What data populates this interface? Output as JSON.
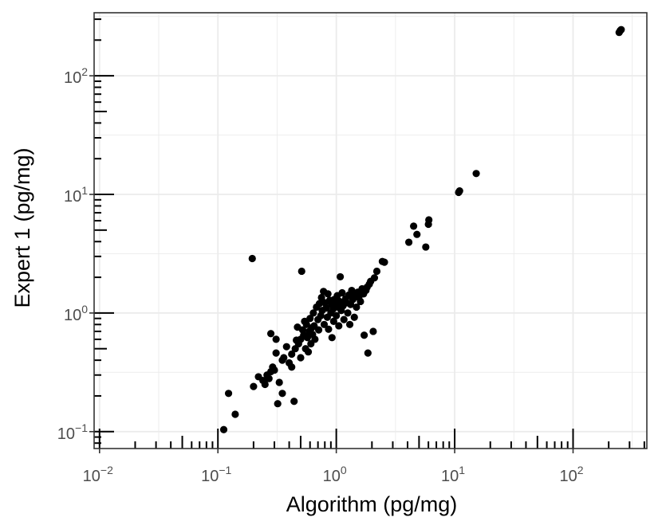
{
  "chart_data": {
    "type": "scatter",
    "xlabel": "Algorithm (pg/mg)",
    "ylabel": "Expert 1 (pg/mg)",
    "xscale": "log10",
    "yscale": "log10",
    "xlim": [
      0.009,
      420
    ],
    "ylim": [
      0.072,
      340
    ],
    "x_ticks": [
      {
        "base": "10",
        "exp": "−2",
        "value": 0.01
      },
      {
        "base": "10",
        "exp": "−1",
        "value": 0.1
      },
      {
        "base": "10",
        "exp": "0",
        "value": 1
      },
      {
        "base": "10",
        "exp": "1",
        "value": 10
      },
      {
        "base": "10",
        "exp": "2",
        "value": 100
      }
    ],
    "y_ticks": [
      {
        "base": "10",
        "exp": "−1",
        "value": 0.1
      },
      {
        "base": "10",
        "exp": "0",
        "value": 1
      },
      {
        "base": "10",
        "exp": "1",
        "value": 10
      },
      {
        "base": "10",
        "exp": "2",
        "value": 100
      }
    ],
    "grid": true,
    "rug": true,
    "colors": {
      "point": "#000000",
      "grid": "#ebebeb",
      "panel_border": "#333333"
    },
    "points": [
      [
        0.112,
        0.104
      ],
      [
        0.123,
        0.21
      ],
      [
        0.14,
        0.14
      ],
      [
        0.195,
        2.88
      ],
      [
        0.2,
        0.24
      ],
      [
        0.22,
        0.29
      ],
      [
        0.24,
        0.27
      ],
      [
        0.25,
        0.25
      ],
      [
        0.26,
        0.3
      ],
      [
        0.27,
        0.28
      ],
      [
        0.28,
        0.32
      ],
      [
        0.29,
        0.35
      ],
      [
        0.3,
        0.33
      ],
      [
        0.28,
        0.67
      ],
      [
        0.31,
        0.6
      ],
      [
        0.31,
        0.46
      ],
      [
        0.33,
        0.26
      ],
      [
        0.35,
        0.21
      ],
      [
        0.32,
        0.172
      ],
      [
        0.35,
        0.4
      ],
      [
        0.36,
        0.42
      ],
      [
        0.38,
        0.52
      ],
      [
        0.4,
        0.38
      ],
      [
        0.42,
        0.45
      ],
      [
        0.42,
        0.35
      ],
      [
        0.44,
        0.18
      ],
      [
        0.45,
        0.5
      ],
      [
        0.46,
        0.59
      ],
      [
        0.47,
        0.76
      ],
      [
        0.48,
        0.55
      ],
      [
        0.5,
        0.6
      ],
      [
        0.5,
        0.42
      ],
      [
        0.51,
        2.25
      ],
      [
        0.52,
        0.72
      ],
      [
        0.53,
        0.65
      ],
      [
        0.54,
        0.85
      ],
      [
        0.55,
        0.5
      ],
      [
        0.56,
        0.8
      ],
      [
        0.57,
        0.62
      ],
      [
        0.58,
        0.47
      ],
      [
        0.59,
        0.7
      ],
      [
        0.6,
        0.9
      ],
      [
        0.61,
        0.55
      ],
      [
        0.62,
        0.75
      ],
      [
        0.63,
        0.66
      ],
      [
        0.64,
        1.0
      ],
      [
        0.65,
        0.78
      ],
      [
        0.66,
        0.6
      ],
      [
        0.68,
        1.12
      ],
      [
        0.7,
        0.88
      ],
      [
        0.71,
        0.72
      ],
      [
        0.72,
        1.2
      ],
      [
        0.74,
        0.95
      ],
      [
        0.75,
        1.35
      ],
      [
        0.76,
        1.05
      ],
      [
        0.78,
        1.52
      ],
      [
        0.79,
        0.8
      ],
      [
        0.8,
        1.22
      ],
      [
        0.82,
        1.1
      ],
      [
        0.84,
        0.92
      ],
      [
        0.85,
        1.45
      ],
      [
        0.86,
        0.73
      ],
      [
        0.88,
        1.28
      ],
      [
        0.9,
        1.0
      ],
      [
        0.91,
        1.18
      ],
      [
        0.92,
        0.62
      ],
      [
        0.94,
        1.08
      ],
      [
        0.95,
        0.85
      ],
      [
        0.96,
        1.3
      ],
      [
        0.98,
        1.2
      ],
      [
        1.0,
        0.95
      ],
      [
        1.02,
        1.4
      ],
      [
        1.04,
        1.12
      ],
      [
        1.05,
        0.78
      ],
      [
        1.07,
        1.25
      ],
      [
        1.08,
        2.02
      ],
      [
        1.1,
        1.05
      ],
      [
        1.12,
        1.48
      ],
      [
        1.14,
        1.15
      ],
      [
        1.16,
        0.88
      ],
      [
        1.2,
        1.32
      ],
      [
        1.22,
        1.22
      ],
      [
        1.25,
        1.0
      ],
      [
        1.28,
        1.42
      ],
      [
        1.3,
        0.8
      ],
      [
        1.32,
        1.18
      ],
      [
        1.35,
        1.55
      ],
      [
        1.38,
        1.3
      ],
      [
        1.42,
        0.92
      ],
      [
        1.45,
        1.4
      ],
      [
        1.48,
        1.12
      ],
      [
        1.52,
        1.5
      ],
      [
        1.55,
        1.35
      ],
      [
        1.6,
        1.25
      ],
      [
        1.65,
        1.6
      ],
      [
        1.7,
        1.45
      ],
      [
        1.72,
        0.65
      ],
      [
        1.78,
        1.55
      ],
      [
        1.82,
        1.65
      ],
      [
        1.85,
        0.46
      ],
      [
        1.9,
        1.75
      ],
      [
        1.95,
        1.85
      ],
      [
        2.05,
        0.7
      ],
      [
        2.1,
        1.98
      ],
      [
        2.2,
        2.25
      ],
      [
        2.45,
        2.72
      ],
      [
        2.55,
        2.68
      ],
      [
        4.1,
        3.95
      ],
      [
        4.5,
        5.4
      ],
      [
        4.8,
        4.6
      ],
      [
        5.7,
        3.6
      ],
      [
        6.0,
        5.6
      ],
      [
        6.05,
        6.1
      ],
      [
        10.8,
        10.4
      ],
      [
        11.0,
        10.7
      ],
      [
        15.2,
        15.0
      ],
      [
        245,
        232
      ],
      [
        250,
        240
      ],
      [
        255,
        245
      ]
    ]
  }
}
